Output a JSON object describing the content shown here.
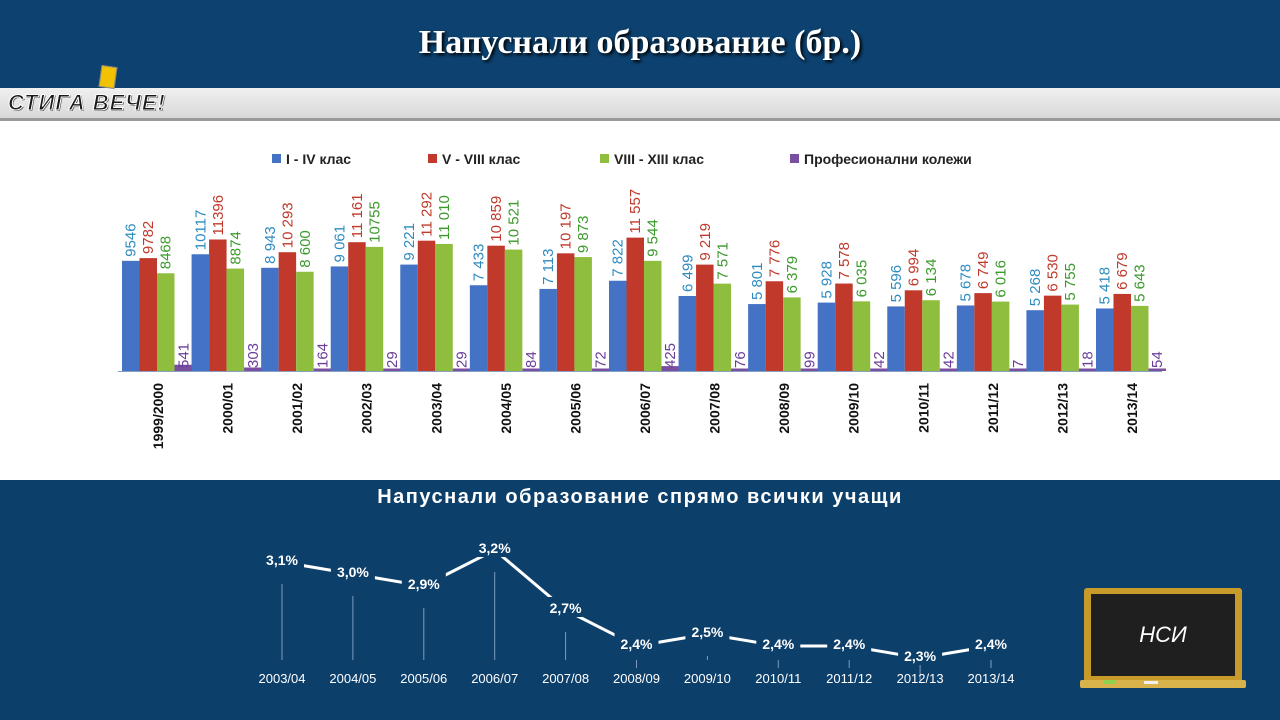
{
  "title": "Напуснали образование (бр.)",
  "logo": {
    "text": "СТИГА ВЕЧЕ!"
  },
  "colors": {
    "background": "#0d3f6b",
    "series": [
      "#4472c4",
      "#c0392b",
      "#8fbe3f",
      "#7b4fa0"
    ],
    "labels": [
      "#2e8bc0",
      "#c0392b",
      "#3a9a2a",
      "#6a3d9a"
    ]
  },
  "badge": {
    "label": "НСИ"
  },
  "chart_data": [
    {
      "type": "bar",
      "legend_position": "top",
      "categories": [
        "1999/2000",
        "2000/01",
        "2001/02",
        "2002/03",
        "2003/04",
        "2004/05",
        "2005/06",
        "2006/07",
        "2007/08",
        "2008/09",
        "2009/10",
        "2010/11",
        "2011/12",
        "2012/13",
        "2013/14"
      ],
      "series": [
        {
          "name": "I - IV клас",
          "values": [
            9546,
            10117,
            8943,
            9061,
            9221,
            7433,
            7113,
            7822,
            6499,
            5801,
            5928,
            5596,
            5678,
            5268,
            5418
          ],
          "labels": [
            "9546",
            "10117",
            "8 943",
            "9 061",
            "9 221",
            "7 433",
            "7 113",
            "7 822",
            "6 499",
            "5 801",
            "5 928",
            "5 596",
            "5 678",
            "5 268",
            "5 418"
          ]
        },
        {
          "name": "V - VIII клас",
          "values": [
            9782,
            11396,
            10293,
            11161,
            11292,
            10859,
            10197,
            11557,
            9219,
            7776,
            7578,
            6994,
            6749,
            6530,
            6679
          ],
          "labels": [
            "9782",
            "11396",
            "10 293",
            "11 161",
            "11 292",
            "10 859",
            "10 197",
            "11 557",
            "9 219",
            "7 776",
            "7 578",
            "6 994",
            "6 749",
            "6 530",
            "6 679"
          ]
        },
        {
          "name": "VIII - XIII клас",
          "values": [
            8468,
            8874,
            8600,
            10755,
            11010,
            10521,
            9873,
            9544,
            7571,
            6379,
            6035,
            6134,
            6016,
            5755,
            5643
          ],
          "labels": [
            "8468",
            "8874",
            "8 600",
            "10755",
            "11 010",
            "10 521",
            "9 873",
            "9 544",
            "7 571",
            "6 379",
            "6 035",
            "6 134",
            "6 016",
            "5 755",
            "5 643"
          ]
        },
        {
          "name": "Професионални колежи",
          "values": [
            541,
            303,
            164,
            29,
            29,
            84,
            72,
            425,
            76,
            99,
            42,
            42,
            7,
            18,
            54
          ],
          "labels": [
            "541",
            "303",
            "164",
            "29",
            "29",
            "84",
            "72",
            "425",
            "76",
            "99",
            "42",
            "42",
            "7",
            "18",
            "54"
          ]
        }
      ]
    },
    {
      "type": "line",
      "title": "Напуснали образование спрямо всички учащи",
      "categories": [
        "2003/04",
        "2004/05",
        "2005/06",
        "2006/07",
        "2007/08",
        "2008/09",
        "2009/10",
        "2010/11",
        "2011/12",
        "2012/13",
        "2013/14"
      ],
      "values": [
        3.1,
        3.0,
        2.9,
        3.2,
        2.7,
        2.4,
        2.5,
        2.4,
        2.4,
        2.3,
        2.4
      ],
      "labels": [
        "3,1%",
        "3,0%",
        "2,9%",
        "3,2%",
        "2,7%",
        "2,4%",
        "2,5%",
        "2,4%",
        "2,4%",
        "2,3%",
        "2,4%"
      ]
    }
  ]
}
